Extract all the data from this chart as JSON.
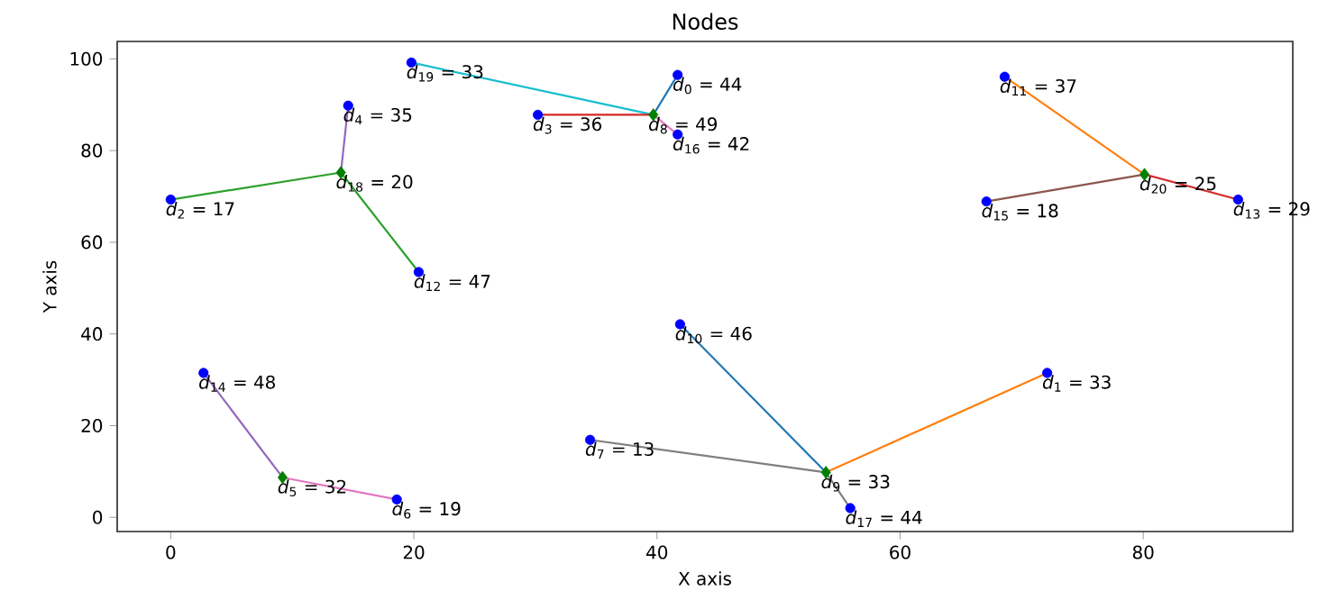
{
  "chart_data": {
    "type": "scatter",
    "title": "Nodes",
    "xlabel": "X axis",
    "ylabel": "Y axis",
    "xlim": [
      -4.4,
      92.3
    ],
    "ylim": [
      -3.1,
      103.8
    ],
    "xticks": [
      0,
      20,
      40,
      60,
      80
    ],
    "yticks": [
      0,
      20,
      40,
      60,
      80,
      100
    ],
    "series": [
      {
        "type": "line",
        "color": "#17becf",
        "x": [
          39.7,
          19.8
        ],
        "values": [
          87.8,
          99.2
        ]
      },
      {
        "type": "line",
        "color": "#1f77b4",
        "x": [
          39.7,
          41.7
        ],
        "values": [
          87.8,
          96.5
        ]
      },
      {
        "type": "line",
        "color": "#d62728",
        "x": [
          39.7,
          30.2
        ],
        "values": [
          87.8,
          87.8
        ]
      },
      {
        "type": "line",
        "color": "#e377c2",
        "x": [
          39.7,
          41.7
        ],
        "values": [
          87.8,
          83.5
        ]
      },
      {
        "type": "line",
        "color": "#9467bd",
        "x": [
          14.0,
          14.6
        ],
        "values": [
          75.2,
          89.8
        ]
      },
      {
        "type": "line",
        "color": "#2ca02c",
        "x": [
          14.0,
          0.0
        ],
        "values": [
          75.2,
          69.3
        ]
      },
      {
        "type": "line",
        "color": "#2ca02c",
        "x": [
          14.0,
          20.4
        ],
        "values": [
          75.2,
          53.5
        ]
      },
      {
        "type": "line",
        "color": "#ff7f0e",
        "x": [
          80.1,
          68.6
        ],
        "values": [
          74.8,
          96.1
        ]
      },
      {
        "type": "line",
        "color": "#8c564b",
        "x": [
          80.1,
          67.1
        ],
        "values": [
          74.8,
          68.9
        ]
      },
      {
        "type": "line",
        "color": "#d62728",
        "x": [
          80.1,
          87.8
        ],
        "values": [
          74.8,
          69.3
        ]
      },
      {
        "type": "line",
        "color": "#9467bd",
        "x": [
          9.2,
          2.7
        ],
        "values": [
          8.7,
          31.5
        ]
      },
      {
        "type": "line",
        "color": "#e377c2",
        "x": [
          9.2,
          18.6
        ],
        "values": [
          8.7,
          3.9
        ]
      },
      {
        "type": "line",
        "color": "#1f77b4",
        "x": [
          53.9,
          41.9
        ],
        "values": [
          9.8,
          42.1
        ]
      },
      {
        "type": "line",
        "color": "#ff7f0e",
        "x": [
          53.9,
          72.1
        ],
        "values": [
          9.8,
          31.5
        ]
      },
      {
        "type": "line",
        "color": "#7f7f7f",
        "x": [
          53.9,
          34.5
        ],
        "values": [
          9.8,
          16.9
        ]
      },
      {
        "type": "line",
        "color": "#7f7f7f",
        "x": [
          53.9,
          55.9
        ],
        "values": [
          9.8,
          2.0
        ]
      },
      {
        "type": "scatter",
        "marker": "circle",
        "color": "#0000ff",
        "x": [
          41.7,
          72.1,
          0.0,
          30.2,
          14.6,
          18.6,
          34.5,
          41.9,
          68.6,
          20.4,
          87.8,
          2.7,
          67.1,
          41.7,
          55.9,
          19.8
        ],
        "values": [
          96.5,
          31.5,
          69.3,
          87.8,
          89.8,
          3.9,
          16.9,
          42.1,
          96.1,
          53.5,
          69.3,
          31.5,
          68.9,
          83.5,
          2.0,
          99.2
        ]
      },
      {
        "type": "scatter",
        "marker": "diamond",
        "color": "#008000",
        "x": [
          9.2,
          39.7,
          53.9,
          14.0,
          80.1
        ],
        "values": [
          8.7,
          87.8,
          9.8,
          75.2,
          74.8
        ]
      }
    ],
    "annotations": [
      {
        "text": "*d*$_{0}$ = 44",
        "x": 41.7,
        "y": 96.5
      },
      {
        "text": "*d*$_{1}$ = 33",
        "x": 72.1,
        "y": 31.5
      },
      {
        "text": "*d*$_{2}$ = 17",
        "x": 0.0,
        "y": 69.3
      },
      {
        "text": "*d*$_{3}$ = 36",
        "x": 30.2,
        "y": 87.8
      },
      {
        "text": "*d*$_{4}$ = 35",
        "x": 14.6,
        "y": 89.8
      },
      {
        "text": "*d*$_{5}$ = 32",
        "x": 9.2,
        "y": 8.7
      },
      {
        "text": "*d*$_{6}$ = 19",
        "x": 18.6,
        "y": 3.9
      },
      {
        "text": "*d*$_{7}$ = 13",
        "x": 34.5,
        "y": 16.9
      },
      {
        "text": "*d*$_{8}$ = 49",
        "x": 39.7,
        "y": 87.8
      },
      {
        "text": "*d*$_{9}$ = 33",
        "x": 53.9,
        "y": 9.8
      },
      {
        "text": "*d*$_{10}$ = 46",
        "x": 41.9,
        "y": 42.1
      },
      {
        "text": "*d*$_{11}$ = 37",
        "x": 68.6,
        "y": 96.1
      },
      {
        "text": "*d*$_{12}$ = 47",
        "x": 20.4,
        "y": 53.5
      },
      {
        "text": "*d*$_{13}$ = 29",
        "x": 87.8,
        "y": 69.3
      },
      {
        "text": "*d*$_{14}$ = 48",
        "x": 2.7,
        "y": 31.5
      },
      {
        "text": "*d*$_{15}$ = 18",
        "x": 67.1,
        "y": 68.9
      },
      {
        "text": "*d*$_{16}$ = 42",
        "x": 41.7,
        "y": 83.5
      },
      {
        "text": "*d*$_{17}$ = 44",
        "x": 55.9,
        "y": 2.0
      },
      {
        "text": "*d*$_{18}$ = 20",
        "x": 14.0,
        "y": 75.2
      },
      {
        "text": "*d*$_{19}$ = 33",
        "x": 19.8,
        "y": 99.2
      },
      {
        "text": "*d*$_{20}$ = 25",
        "x": 80.1,
        "y": 74.8
      }
    ]
  }
}
